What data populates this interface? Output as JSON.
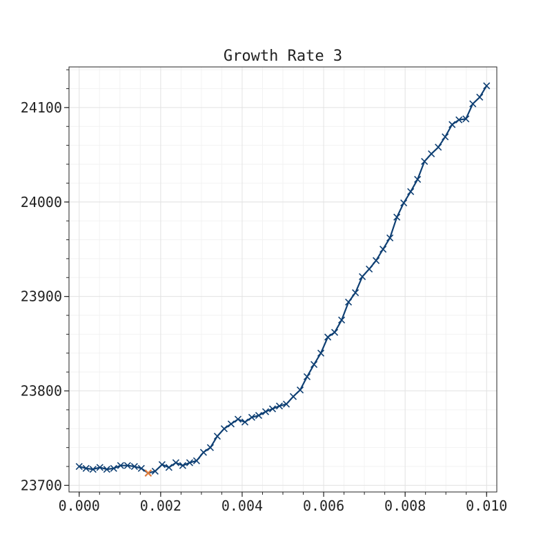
{
  "chart_data": {
    "type": "line",
    "title": "Growth Rate 3",
    "xlabel": "",
    "ylabel": "",
    "xlim": [
      -0.00025,
      0.01025
    ],
    "ylim": [
      23693,
      24143
    ],
    "x_ticks": [
      0.0,
      0.002,
      0.004,
      0.006,
      0.008,
      0.01
    ],
    "x_tick_labels": [
      "0.000",
      "0.002",
      "0.004",
      "0.006",
      "0.008",
      "0.010"
    ],
    "y_ticks": [
      23700,
      23800,
      23900,
      24000,
      24100
    ],
    "y_tick_labels": [
      "23700",
      "23800",
      "23900",
      "24000",
      "24100"
    ],
    "grid": true,
    "marker": "x",
    "line_color": "#0e3f73",
    "highlight_color": "#e07b39",
    "series": [
      {
        "x": [
          0.0,
          0.000169,
          0.000339,
          0.000508,
          0.000678,
          0.000847,
          0.001017,
          0.001186,
          0.001356,
          0.001525,
          0.001695,
          0.001864,
          0.002034,
          0.002203,
          0.002373,
          0.002542,
          0.002712,
          0.002881,
          0.003051,
          0.00322,
          0.00339,
          0.003559,
          0.003729,
          0.003898,
          0.004068,
          0.004237,
          0.004407,
          0.004576,
          0.004746,
          0.004915,
          0.005085,
          0.005254,
          0.005424,
          0.005593,
          0.005763,
          0.005932,
          0.006102,
          0.006271,
          0.006441,
          0.00661,
          0.00678,
          0.006949,
          0.007119,
          0.007288,
          0.007458,
          0.007627,
          0.007797,
          0.007966,
          0.008136,
          0.008305,
          0.008475,
          0.008644,
          0.008814,
          0.008983,
          0.009153,
          0.009322,
          0.009492,
          0.009661,
          0.009831,
          0.01
        ],
        "y": [
          23720,
          23718,
          23717,
          23719,
          23717,
          23718,
          23721,
          23721,
          23720,
          23718,
          23713,
          23715,
          23722,
          23719,
          23724,
          23721,
          23724,
          23726,
          23735,
          23740,
          23752,
          23760,
          23765,
          23770,
          23767,
          23772,
          23774,
          23778,
          23781,
          23784,
          23786,
          23794,
          23801,
          23815,
          23828,
          23840,
          23857,
          23862,
          23875,
          23894,
          23904,
          23921,
          23929,
          23938,
          23950,
          23962,
          23984,
          23999,
          24011,
          24024,
          24043,
          24051,
          24058,
          24069,
          24082,
          24087,
          24088,
          24104,
          24111,
          24123
        ]
      }
    ],
    "highlight_point": {
      "x": 0.001695,
      "y": 23713
    }
  }
}
